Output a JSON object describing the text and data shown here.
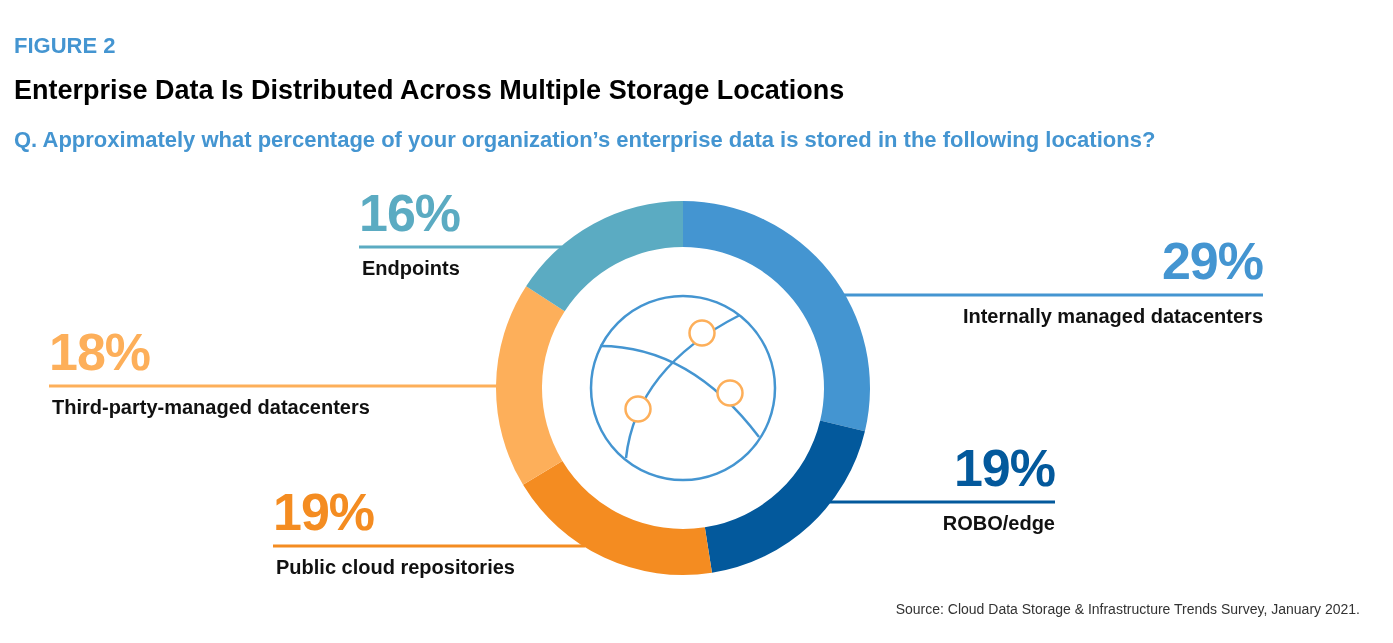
{
  "chart_data": {
    "type": "donut",
    "title": "Enterprise Data Is Distributed Across Multiple Storage Locations",
    "subtitle": "Q. Approximately what percentage of your organization’s enterprise data is stored in the following locations?",
    "categories": [
      "Internally managed datacenters",
      "ROBO/edge",
      "Public cloud repositories",
      "Third-party-managed datacenters",
      "Endpoints"
    ],
    "values": [
      29,
      19,
      19,
      18,
      16
    ],
    "colors": [
      "#4495d1",
      "#03599c",
      "#f48c21",
      "#fdaf5a",
      "#5babc2"
    ],
    "value_labels": [
      "29%",
      "19%",
      "19%",
      "18%",
      "16%"
    ],
    "annotations": [
      "FIGURE 2",
      "Source: Cloud Data Storage & Infrastructure Trends Survey, January 2021."
    ]
  }
}
